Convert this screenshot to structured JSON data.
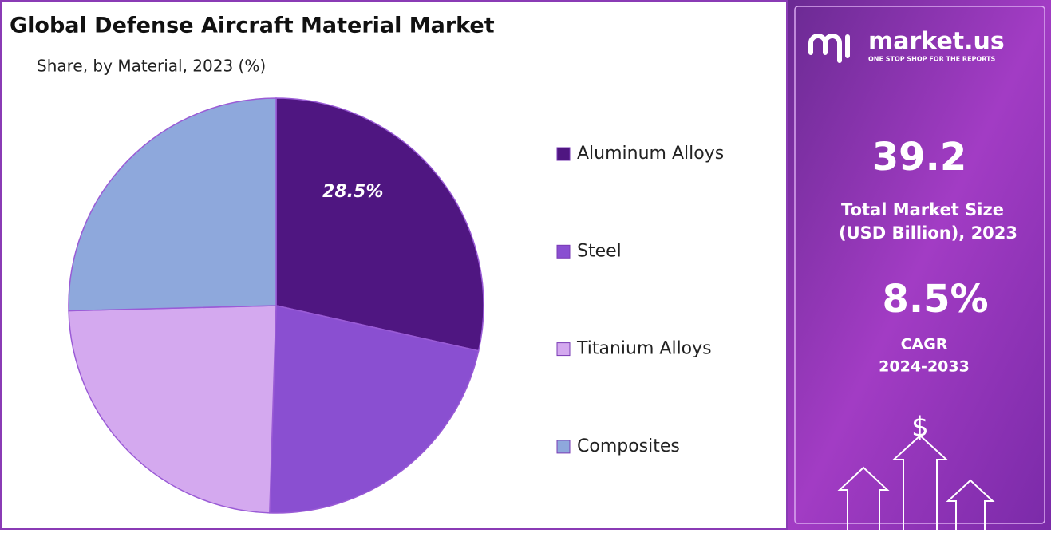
{
  "chart_data": {
    "type": "pie",
    "title": "Global Defense Aircraft Material Market",
    "subtitle": "Share, by Material, 2023 (%)",
    "categories": [
      "Aluminum Alloys",
      "Steel",
      "Titanium Alloys",
      "Composites"
    ],
    "values": [
      28.5,
      22.0,
      24.1,
      25.4
    ],
    "value_labels": [
      "28.5%",
      null,
      null,
      null
    ],
    "colors": [
      "#4f1681",
      "#8a4fd1",
      "#d4a9ef",
      "#8ea8dc"
    ]
  },
  "panel": {
    "brand": "market.us",
    "tagline": "ONE STOP SHOP FOR THE REPORTS",
    "market_size": "39.2",
    "market_size_label": [
      "Total Market Size",
      "(USD Billion), 2023"
    ],
    "cagr": "8.5%",
    "cagr_label": [
      "CAGR",
      "2024-2033"
    ],
    "icon": "$"
  }
}
